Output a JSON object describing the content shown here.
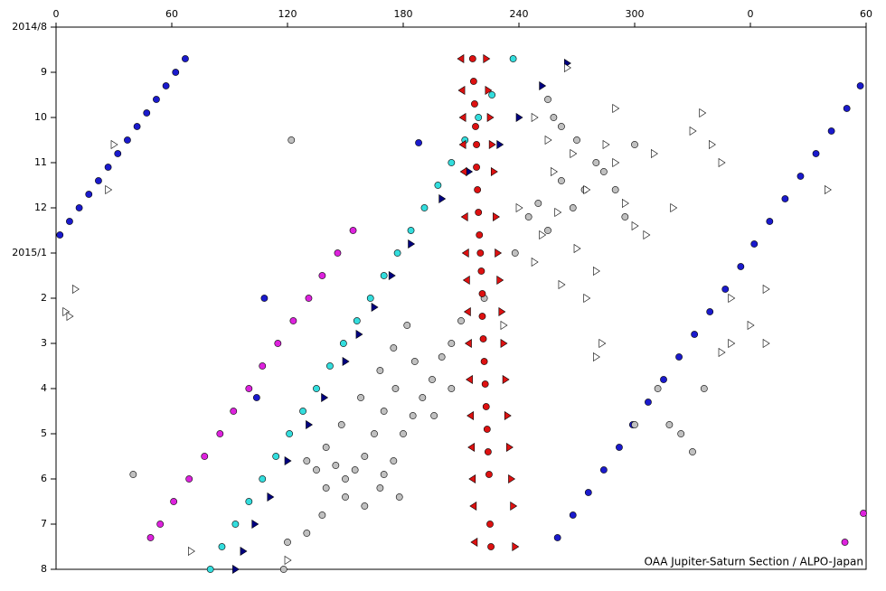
{
  "chart_data": {
    "type": "scatter",
    "credit": "OAA Jupiter-Saturn Section / ALPO-Japan",
    "xlim": [
      0,
      420
    ],
    "xticks": [
      0,
      60,
      120,
      180,
      240,
      300,
      {
        "value": 360,
        "label": "0"
      },
      {
        "value": 420,
        "label": "60"
      }
    ],
    "ylim": [
      0,
      12
    ],
    "y_inverted": true,
    "yticks": [
      {
        "value": 0,
        "label": "2014/8"
      },
      {
        "value": 1,
        "label": "9"
      },
      {
        "value": 2,
        "label": "10"
      },
      {
        "value": 3,
        "label": "11"
      },
      {
        "value": 4,
        "label": "12"
      },
      {
        "value": 5,
        "label": "2015/1"
      },
      {
        "value": 6,
        "label": "2"
      },
      {
        "value": 7,
        "label": "3"
      },
      {
        "value": 8,
        "label": "4"
      },
      {
        "value": 9,
        "label": "5"
      },
      {
        "value": 10,
        "label": "6"
      },
      {
        "value": 11,
        "label": "7"
      },
      {
        "value": 12,
        "label": "8"
      }
    ],
    "series": [
      {
        "color": "#1a1acc",
        "marker": "circle",
        "x": [
          67,
          62,
          57,
          52,
          47,
          42,
          37,
          32,
          27,
          22,
          17,
          12,
          7,
          2,
          417,
          410,
          402,
          394,
          386,
          378,
          370,
          362,
          355,
          347,
          339,
          331,
          323,
          315,
          307,
          299,
          292,
          284,
          276,
          268,
          260,
          188,
          108,
          104
        ],
        "values": [
          0.7,
          1.0,
          1.3,
          1.6,
          1.9,
          2.2,
          2.5,
          2.8,
          3.1,
          3.4,
          3.7,
          4.0,
          4.3,
          4.6,
          1.3,
          1.8,
          2.3,
          2.8,
          3.3,
          3.8,
          4.3,
          4.8,
          5.3,
          5.8,
          6.3,
          6.8,
          7.3,
          7.8,
          8.3,
          8.8,
          9.3,
          9.8,
          10.3,
          10.8,
          11.3,
          2.56,
          6.0,
          8.2
        ]
      },
      {
        "color": "#dd22dd",
        "marker": "circle",
        "x": [
          154,
          146,
          138,
          131,
          123,
          115,
          107,
          100,
          92,
          85,
          77,
          69,
          61,
          54,
          49,
          418.6,
          409
        ],
        "values": [
          4.5,
          5.0,
          5.5,
          6.0,
          6.5,
          7.0,
          7.5,
          8.0,
          8.5,
          9.0,
          9.5,
          10.0,
          10.5,
          11.0,
          11.3,
          10.76,
          11.4
        ]
      },
      {
        "color": "#33dddd",
        "marker": "circle",
        "x": [
          237,
          226,
          219,
          212,
          205,
          198,
          191,
          184,
          177,
          170,
          163,
          156,
          149,
          142,
          135,
          128,
          121,
          114,
          107,
          100,
          93,
          86,
          80
        ],
        "values": [
          0.7,
          1.5,
          2.0,
          2.5,
          3.0,
          3.5,
          4.0,
          4.5,
          5.0,
          5.5,
          6.0,
          6.5,
          7.0,
          7.5,
          8.0,
          8.5,
          9.0,
          9.5,
          10.0,
          10.5,
          11.0,
          11.5,
          12.0
        ]
      },
      {
        "color": "#000080",
        "marker": "triangle-right",
        "x": [
          265,
          252,
          240,
          230,
          214,
          200,
          184,
          174,
          165,
          157,
          150,
          139,
          131,
          120,
          111,
          103,
          97,
          93
        ],
        "values": [
          0.8,
          1.3,
          2.0,
          2.6,
          3.2,
          3.8,
          4.8,
          5.5,
          6.2,
          6.8,
          7.4,
          8.2,
          8.8,
          9.6,
          10.4,
          11.0,
          11.6,
          12.0
        ]
      },
      {
        "color": "#c0c0c0",
        "marker": "circle",
        "x": [
          258,
          262,
          255,
          270,
          280,
          274,
          268,
          284,
          290,
          300,
          295,
          262,
          250,
          255,
          245,
          238,
          222,
          210,
          205,
          200,
          195,
          190,
          185,
          180,
          176,
          170,
          165,
          160,
          155,
          150,
          145,
          140,
          148,
          158,
          168,
          175,
          182,
          186,
          175,
          168,
          160,
          150,
          140,
          135,
          130,
          138,
          178,
          170,
          324,
          330,
          318,
          336,
          312,
          300,
          40,
          120,
          130,
          118,
          122,
          205,
          196
        ],
        "values": [
          2.0,
          2.2,
          1.6,
          2.5,
          3.0,
          3.6,
          4.0,
          3.2,
          3.6,
          2.6,
          4.2,
          3.4,
          3.9,
          4.5,
          4.2,
          5.0,
          6.0,
          6.5,
          7.0,
          7.3,
          7.8,
          8.2,
          8.6,
          9.0,
          8.0,
          8.5,
          9.0,
          9.5,
          9.8,
          10.0,
          9.7,
          9.3,
          8.8,
          8.2,
          7.6,
          7.1,
          6.6,
          7.4,
          9.6,
          10.2,
          10.6,
          10.4,
          10.2,
          9.8,
          9.6,
          10.8,
          10.4,
          9.9,
          9.0,
          9.4,
          8.8,
          8.0,
          8.0,
          8.8,
          9.9,
          11.4,
          11.2,
          12.0,
          2.5,
          8.0,
          8.6
        ]
      },
      {
        "color": "#ffffff",
        "marker": "triangle-right",
        "x": [
          248,
          255,
          268,
          258,
          275,
          285,
          290,
          295,
          300,
          260,
          252,
          270,
          280,
          262,
          275,
          248,
          240,
          335,
          330,
          340,
          345,
          320,
          306,
          310,
          290,
          265,
          30,
          27,
          5,
          7,
          10,
          350,
          360,
          350,
          345,
          368,
          368,
          400,
          70,
          120,
          232,
          280,
          283
        ],
        "values": [
          2.0,
          2.5,
          2.8,
          3.2,
          3.6,
          2.6,
          3.0,
          3.9,
          4.4,
          4.1,
          4.6,
          4.9,
          5.4,
          5.7,
          6.0,
          5.2,
          4.0,
          1.9,
          2.3,
          2.6,
          3.0,
          4.0,
          4.6,
          2.8,
          1.8,
          0.9,
          2.6,
          3.6,
          6.3,
          6.4,
          5.8,
          6.0,
          6.6,
          7.0,
          7.2,
          7.0,
          5.8,
          3.6,
          11.6,
          11.8,
          6.6,
          7.3,
          7.0
        ]
      },
      {
        "color": "#dd1111",
        "marker": "circle",
        "x": [
          216,
          216.5,
          217,
          217.5,
          218,
          218,
          218.5,
          219,
          219.5,
          220,
          220.5,
          221,
          221,
          221.5,
          222,
          222.5,
          223,
          223.5,
          224,
          224.5,
          225,
          225.5
        ],
        "values": [
          0.7,
          1.2,
          1.7,
          2.2,
          2.6,
          3.1,
          3.6,
          4.1,
          4.6,
          5.0,
          5.4,
          5.9,
          6.4,
          6.9,
          7.4,
          7.9,
          8.4,
          8.9,
          9.4,
          9.9,
          11.0,
          11.5
        ]
      },
      {
        "color": "#dd1111",
        "marker": "triangle-left",
        "x": [
          210,
          210.5,
          211,
          211,
          211.5,
          212,
          212.5,
          213,
          213.5,
          214,
          214.5,
          215,
          215.5,
          216,
          216.5,
          217
        ],
        "values": [
          0.7,
          1.4,
          2.0,
          2.6,
          3.2,
          4.2,
          5.0,
          5.6,
          6.3,
          7.0,
          7.8,
          8.6,
          9.3,
          10.0,
          10.6,
          11.4
        ]
      },
      {
        "color": "#dd1111",
        "marker": "triangle-right",
        "x": [
          223,
          224,
          225,
          226,
          227,
          228,
          229,
          230,
          231,
          232,
          233,
          234,
          235,
          236,
          237,
          238
        ],
        "values": [
          0.7,
          1.4,
          2.0,
          2.6,
          3.2,
          4.2,
          5.0,
          5.6,
          6.3,
          7.0,
          7.8,
          8.6,
          9.3,
          10.0,
          10.6,
          11.5
        ]
      }
    ]
  }
}
